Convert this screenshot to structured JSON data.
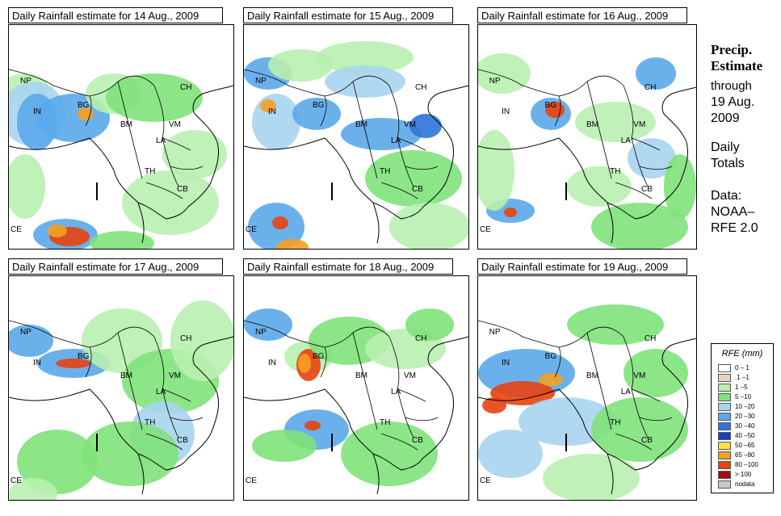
{
  "panels": [
    {
      "title": "Daily Rainfall estimate for  14 Aug., 2009"
    },
    {
      "title": "Daily Rainfall estimate for  15 Aug., 2009"
    },
    {
      "title": "Daily Rainfall estimate for  16 Aug., 2009"
    },
    {
      "title": "Daily Rainfall estimate for  17 Aug., 2009"
    },
    {
      "title": "Daily Rainfall estimate for  18 Aug., 2009"
    },
    {
      "title": "Daily Rainfall estimate for  19 Aug., 2009"
    }
  ],
  "map_labels": [
    "NP",
    "CH",
    "IN",
    "BG",
    "BM",
    "VM",
    "LA",
    "TH",
    "CB",
    "CE"
  ],
  "sidebar": {
    "title_line1": "Precip.",
    "title_line2": "Estimate",
    "through": "through",
    "date_line1": "19 Aug.",
    "date_line2": "2009",
    "daily1": "Daily",
    "daily2": "Totals",
    "data1": "Data:",
    "data2": "NOAA–",
    "data3": "RFE 2.0"
  },
  "legend": {
    "title": "RFE (mm)",
    "items": [
      {
        "label": "0 – 1",
        "color": "#ffffff"
      },
      {
        "label": ".1 –1",
        "color": "#e6d3bf"
      },
      {
        "label": "1 –5",
        "color": "#b8f0b0"
      },
      {
        "label": "5 –10",
        "color": "#7fe27a"
      },
      {
        "label": "10 –20",
        "color": "#a9d4f0"
      },
      {
        "label": "20 –30",
        "color": "#5aa8ea"
      },
      {
        "label": "30 –40",
        "color": "#2f74d8"
      },
      {
        "label": "40 –50",
        "color": "#1a3fc0"
      },
      {
        "label": "50 –65",
        "color": "#f7e04a"
      },
      {
        "label": "65 –80",
        "color": "#f5a020"
      },
      {
        "label": "80 –100",
        "color": "#e8420e"
      },
      {
        "label": "> 100",
        "color": "#a01010"
      },
      {
        "label": "nodata",
        "color": "#c8c8c8"
      }
    ]
  },
  "colors": {
    "dry": "#e6d3bf",
    "light": "#b8f0b0",
    "green": "#7fe27a",
    "pale_blue": "#a9d4f0",
    "blue": "#5aa8ea",
    "dark_blue": "#2f74d8",
    "navy": "#1a3fc0",
    "yellow": "#f7e04a",
    "orange": "#f5a020",
    "red": "#e8420e",
    "dark_red": "#a01010"
  }
}
